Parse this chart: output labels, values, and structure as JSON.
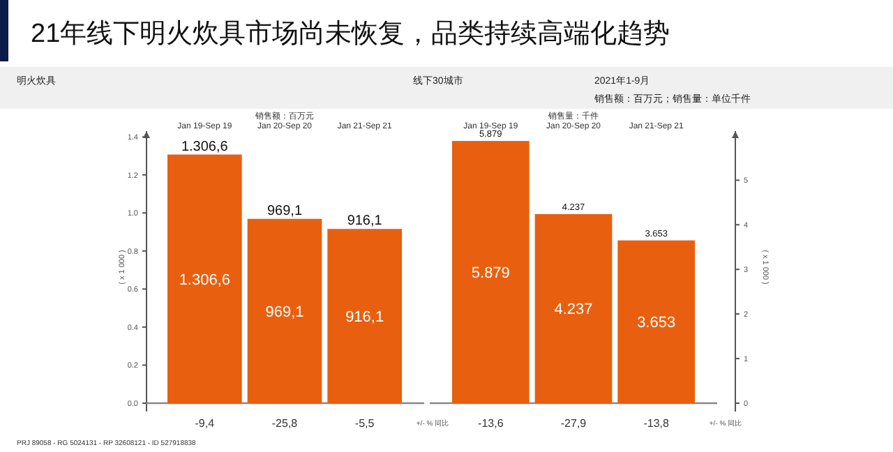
{
  "chart_data": [
    {
      "type": "bar",
      "title": "21年线下明火炊具市场尚未恢复，品类持续高端化趋势",
      "subtitle": "销售额：百万元",
      "annotations": [
        "明火炊具",
        "线下30城市",
        "2021年1-9月",
        "销售额：百万元；销售量：单位千件",
        "1.306,6",
        "969,1",
        "916,1",
        "1.306,6",
        "969,1",
        "916,1",
        "-9,4",
        "-25,8",
        "-5,5",
        "+/- % 同比",
        "PRJ 89058 - RG 5024131 - RP 32608121 - ID 527918838"
      ],
      "categories": [
        "Jan 19-Sep 19",
        "Jan 20-Sep 20",
        "Jan 21-Sep 21"
      ],
      "series": [
        {
          "color": "#e8600f",
          "values": [
            1.307,
            0.969,
            0.916
          ]
        }
      ],
      "ylabel": "( x 1 000 )",
      "ylim": [
        0,
        1.43
      ],
      "yticks": [
        {
          "value": 0,
          "label": "0.0"
        },
        0.2,
        0.4,
        0.6,
        0.8,
        {
          "value": 1,
          "label": "1.0"
        },
        1.2,
        1.4
      ]
    },
    {
      "type": "bar",
      "subtitle": "销售量：千件",
      "annotations": [
        "5.879",
        "4.237",
        "3.653",
        "5.879",
        "4.237",
        "3.653",
        "-13,6",
        "-27,9",
        "-13,8",
        "+/- % 同比"
      ],
      "categories": [
        "Jan 19-Sep 19",
        "Jan 20-Sep 20",
        "Jan 21-Sep 21"
      ],
      "series": [
        {
          "color": "#e8600f",
          "axis": "y2",
          "values": [
            5.88,
            4.24,
            3.65
          ]
        }
      ],
      "y2label": "( x 1 000 )",
      "y2lim": [
        0,
        6.1
      ],
      "y2ticks": [
        0,
        1,
        2,
        3,
        4,
        5
      ]
    }
  ]
}
